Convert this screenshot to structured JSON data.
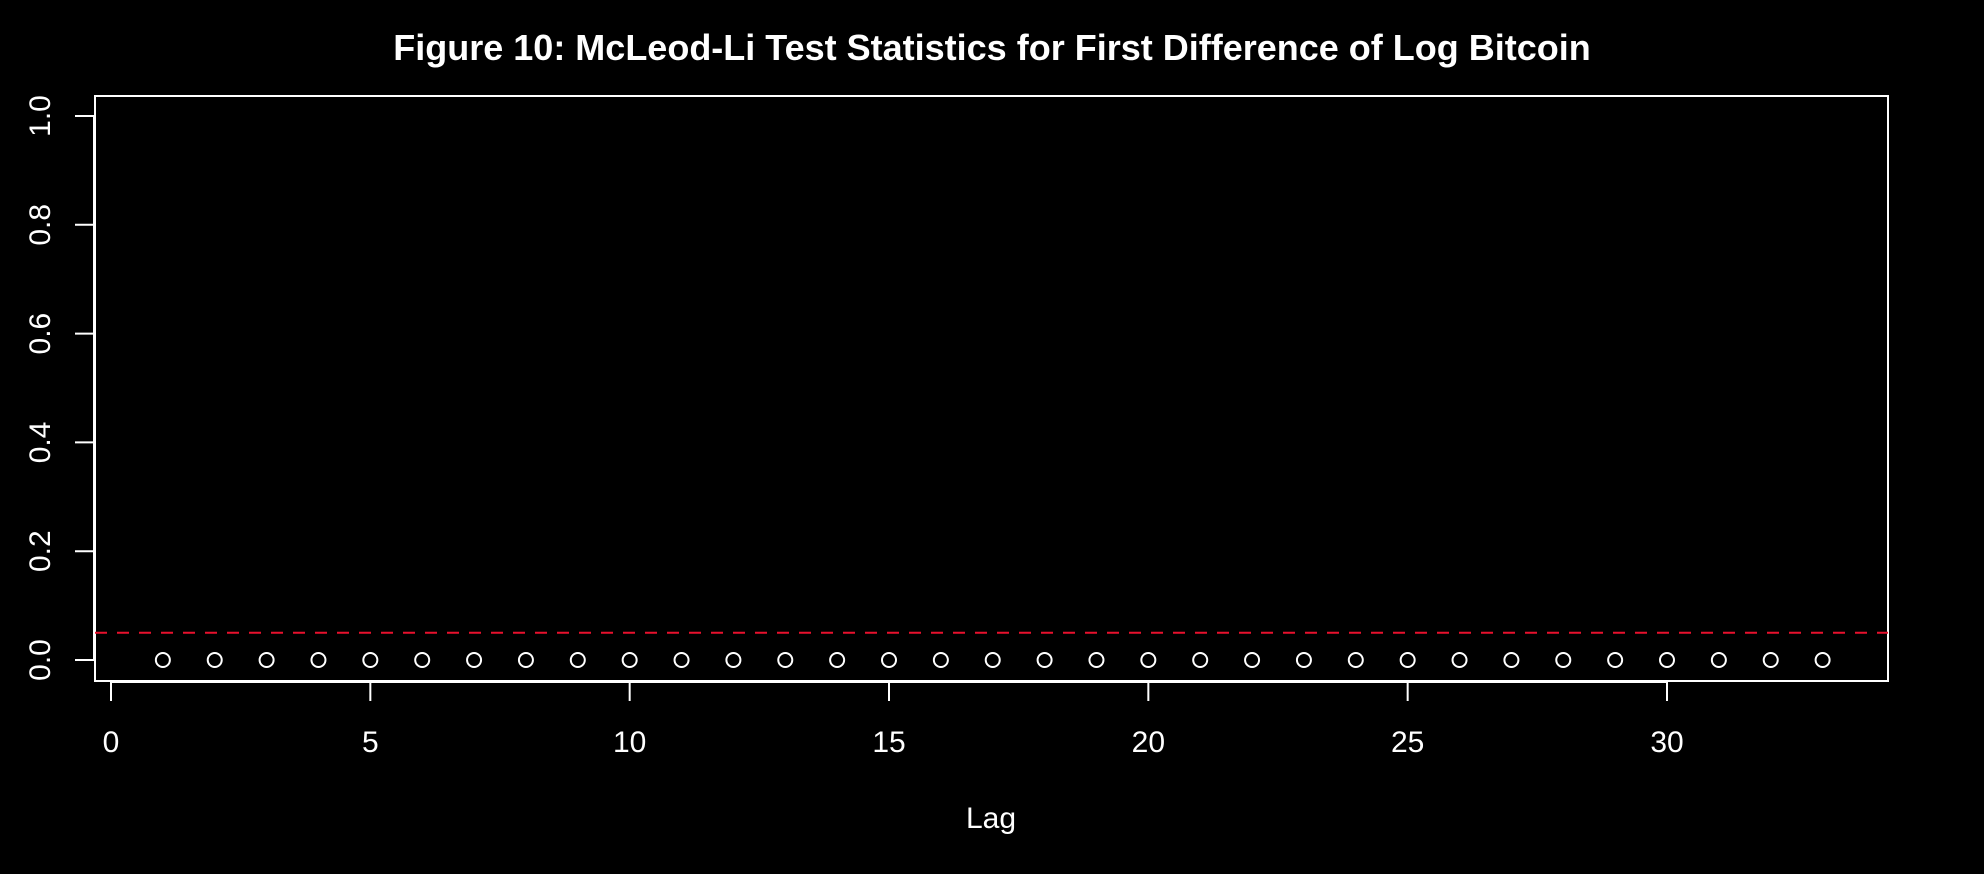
{
  "chart_data": {
    "type": "scatter",
    "title": "Figure  10: McLeod-Li Test Statistics for First Difference of Log Bitcoin",
    "xlabel": "Lag",
    "ylabel": "",
    "xlim": [
      0,
      34
    ],
    "ylim": [
      0.0,
      1.0
    ],
    "xticks": [
      0,
      5,
      10,
      15,
      20,
      25,
      30
    ],
    "xtick_labels": [
      "0",
      "5",
      "10",
      "15",
      "20",
      "25",
      "30"
    ],
    "yticks": [
      0.0,
      0.2,
      0.4,
      0.6,
      0.8,
      1.0
    ],
    "ytick_labels": [
      "0.0",
      "0.2",
      "0.4",
      "0.6",
      "0.8",
      "1.0"
    ],
    "x": [
      1,
      2,
      3,
      4,
      5,
      6,
      7,
      8,
      9,
      10,
      11,
      12,
      13,
      14,
      15,
      16,
      17,
      18,
      19,
      20,
      21,
      22,
      23,
      24,
      25,
      26,
      27,
      28,
      29,
      30,
      31,
      32,
      33
    ],
    "y": [
      0,
      0,
      0,
      0,
      0,
      0,
      0,
      0,
      0,
      0,
      0,
      0,
      0,
      0,
      0,
      0,
      0,
      0,
      0,
      0,
      0,
      0,
      0,
      0,
      0,
      0,
      0,
      0,
      0,
      0,
      0,
      0,
      0
    ],
    "reference_line": {
      "y": 0.05,
      "style": "dashed",
      "color": "#e8112d"
    },
    "grid": false,
    "colors": {
      "background": "#000000",
      "foreground": "#ffffff",
      "points": "#ffffff"
    }
  }
}
